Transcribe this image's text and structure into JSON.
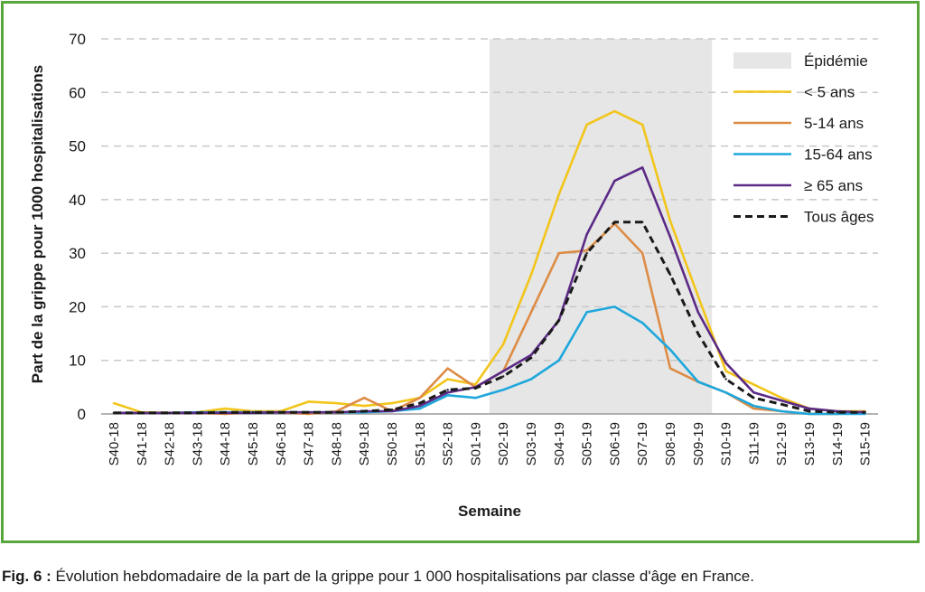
{
  "caption": {
    "label": "Fig. 6 :",
    "text": "Évolution hebdomadaire de la part de la grippe pour 1 000 hospitalisations par classe d'âge en France."
  },
  "chart_data": {
    "type": "line",
    "xlabel": "Semaine",
    "ylabel": "Part de la grippe pour 1000 hospitalisations",
    "ylim": [
      0,
      70
    ],
    "yticks": [
      0,
      10,
      20,
      30,
      40,
      50,
      60,
      70
    ],
    "grid": "horizontal dashed",
    "legend_position": "top-right",
    "categories": [
      "S40-18",
      "S41-18",
      "S42-18",
      "S43-18",
      "S44-18",
      "S45-18",
      "S46-18",
      "S47-18",
      "S48-18",
      "S49-18",
      "S50-18",
      "S51-18",
      "S52-18",
      "S01-19",
      "S02-19",
      "S03-19",
      "S04-19",
      "S05-19",
      "S06-19",
      "S07-19",
      "S08-19",
      "S09-19",
      "S10-19",
      "S11-19",
      "S12-19",
      "S13-19",
      "S14-19",
      "S15-19"
    ],
    "epidemic": {
      "name": "Épidémie",
      "start": "S02-19",
      "end": "S09-19",
      "color": "#e6e6e6"
    },
    "series": [
      {
        "name": "< 5 ans",
        "color": "#f2c51b",
        "dash": false,
        "values": [
          2,
          0.3,
          0.2,
          0.3,
          1,
          0.5,
          0.5,
          2.3,
          2,
          1.5,
          2,
          3,
          6.5,
          5.5,
          13,
          26,
          41,
          54,
          56.5,
          54,
          36,
          22,
          8,
          5.5,
          3,
          1,
          0.5,
          0.5
        ]
      },
      {
        "name": "5-14 ans",
        "color": "#dd8c45",
        "dash": false,
        "values": [
          0.2,
          0.2,
          0.2,
          0.2,
          0,
          0.3,
          0.3,
          0,
          0.5,
          3,
          0.5,
          3,
          8.5,
          5,
          8,
          19,
          30,
          30.5,
          35.5,
          30,
          8.5,
          6,
          4,
          1,
          0.5,
          0,
          0,
          0.5
        ]
      },
      {
        "name": "15-64 ans",
        "color": "#1ea7dc",
        "dash": false,
        "values": [
          0.2,
          0.2,
          0.2,
          0.3,
          0.3,
          0.3,
          0.3,
          0.3,
          0.3,
          0.3,
          0.5,
          1,
          3.5,
          3,
          4.5,
          6.5,
          10,
          19,
          20,
          17,
          12,
          6,
          4,
          1.5,
          0.5,
          0,
          0,
          0
        ]
      },
      {
        "name": "≥ 65 ans",
        "color": "#5b2a86",
        "dash": false,
        "values": [
          0.2,
          0.2,
          0.2,
          0.2,
          0.2,
          0.2,
          0.3,
          0.3,
          0.3,
          0.5,
          0.5,
          1.5,
          4,
          5,
          8,
          11,
          17.5,
          33.5,
          43.5,
          46,
          33,
          19,
          9.5,
          4,
          2.5,
          1,
          0.5,
          0.3
        ]
      },
      {
        "name": "Tous âges",
        "color": "#1a1a1a",
        "dash": true,
        "values": [
          0.2,
          0.2,
          0.2,
          0.2,
          0.3,
          0.3,
          0.3,
          0.3,
          0.3,
          0.5,
          0.8,
          2,
          4.5,
          4.8,
          7,
          10.5,
          17.5,
          30,
          35.8,
          35.8,
          26,
          15,
          6.5,
          3,
          1.8,
          0.5,
          0.3,
          0.3
        ]
      }
    ]
  }
}
